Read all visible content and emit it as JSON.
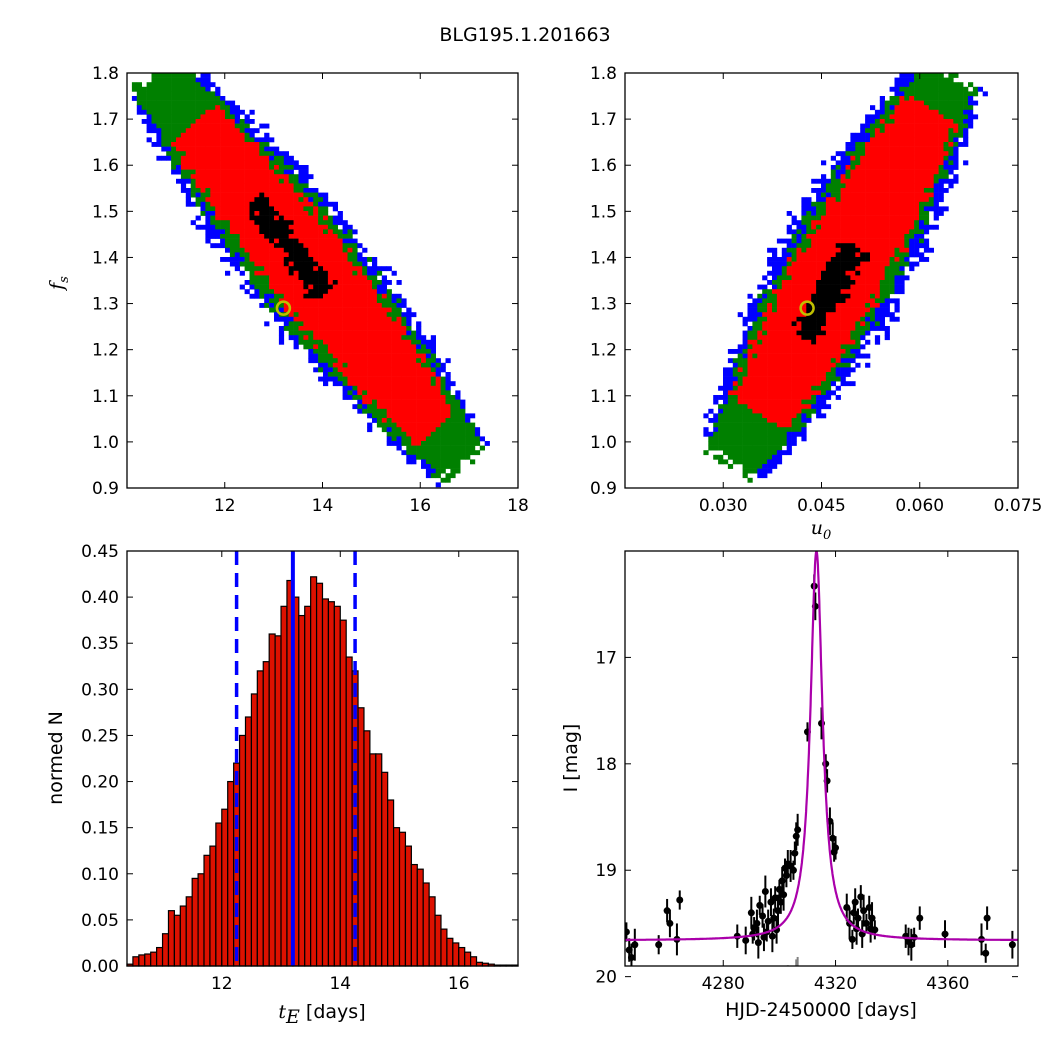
{
  "figure": {
    "title": "BLG195.1.201663",
    "colors": {
      "blue": "#0000ff",
      "green": "#008000",
      "red": "#ff0000",
      "black": "#000000",
      "marker": "#bfbf00",
      "model": "#aa00aa",
      "residual": "#808080",
      "bar_fill": "#dd1100"
    }
  },
  "chart_data": [
    {
      "id": "panel-fs-vs-tE",
      "type": "heatmap",
      "xlim": [
        10,
        18
      ],
      "ylim": [
        0.9,
        1.8
      ],
      "xticks": [
        "12",
        "14",
        "16",
        "18"
      ],
      "yticks": [
        "0.9",
        "1.0",
        "1.1",
        "1.2",
        "1.3",
        "1.4",
        "1.5",
        "1.6",
        "1.7",
        "1.8"
      ],
      "ylabel_main": "f",
      "ylabel_sub": "s",
      "best_fit": {
        "x": 13.2,
        "y": 1.29
      },
      "band": {
        "x0": 10.6,
        "y0": 1.79,
        "x1": 16.8,
        "y1": 0.96,
        "bow": 0.03,
        "half_widths": [
          0.055,
          0.1,
          0.125,
          0.14
        ]
      }
    },
    {
      "id": "panel-fs-vs-u0",
      "type": "heatmap",
      "xlim": [
        0.015,
        0.075
      ],
      "ylim": [
        0.9,
        1.8
      ],
      "xticks": [
        "0.030",
        "0.045",
        "0.060",
        "0.075"
      ],
      "xtick_values": [
        0.03,
        0.045,
        0.06,
        0.075
      ],
      "yticks": [
        "0.9",
        "1.0",
        "1.1",
        "1.2",
        "1.3",
        "1.4",
        "1.5",
        "1.6",
        "1.7",
        "1.8"
      ],
      "xlabel_main": "u",
      "xlabel_sub": "0",
      "best_fit": {
        "x": 0.0428,
        "y": 1.29
      },
      "band": {
        "x0": 0.0315,
        "y0": 0.96,
        "x1": 0.0645,
        "y1": 1.79,
        "half_widths": [
          0.06,
          0.11,
          0.135,
          0.155
        ]
      }
    },
    {
      "id": "panel-tE-histogram",
      "type": "bar",
      "xlim": [
        10.4,
        17
      ],
      "ylim": [
        0,
        0.45
      ],
      "xticks": [
        "12",
        "14",
        "16"
      ],
      "yticks": [
        "0.00",
        "0.05",
        "0.10",
        "0.15",
        "0.20",
        "0.25",
        "0.30",
        "0.35",
        "0.40",
        "0.45"
      ],
      "xlabel_main": "t",
      "xlabel_sub": "E",
      "xlabel_rest": " [days]",
      "ylabel": "normed N",
      "bin_start": 10.4,
      "bin_width": 0.1,
      "values": [
        0.002,
        0.01,
        0.012,
        0.013,
        0.015,
        0.02,
        0.035,
        0.06,
        0.055,
        0.065,
        0.075,
        0.095,
        0.1,
        0.12,
        0.13,
        0.155,
        0.17,
        0.2,
        0.22,
        0.25,
        0.27,
        0.295,
        0.32,
        0.33,
        0.36,
        0.358,
        0.39,
        0.418,
        0.4,
        0.38,
        0.39,
        0.422,
        0.415,
        0.398,
        0.395,
        0.39,
        0.375,
        0.335,
        0.32,
        0.28,
        0.255,
        0.23,
        0.23,
        0.21,
        0.18,
        0.15,
        0.145,
        0.13,
        0.11,
        0.105,
        0.09,
        0.075,
        0.055,
        0.04,
        0.03,
        0.025,
        0.02,
        0.015,
        0.01,
        0.004,
        0.003,
        0.002,
        0.001,
        0.001,
        0.001,
        0.001
      ],
      "median": 13.2,
      "lower_bound": 12.25,
      "upper_bound": 14.25
    },
    {
      "id": "panel-lightcurve",
      "type": "scatter",
      "xlim": [
        4245,
        4385
      ],
      "ylim_top": 16.0,
      "ylim_bottom": 19.9,
      "xticks": [
        "4280",
        "4320",
        "4360"
      ],
      "xtick_values": [
        4280,
        4320,
        4360
      ],
      "yticks": [
        "17",
        "18",
        "19",
        "20"
      ],
      "ytick_values": [
        17,
        18,
        19,
        20
      ],
      "xlabel": "HJD-2450000 [days]",
      "ylabel": "I [mag]",
      "model": {
        "t0": 4313.2,
        "baseline": 19.66,
        "peak": 16.0,
        "tau": 2.6,
        "residual_baseline": 20.47
      },
      "points": [
        [
          4245.5,
          19.58
        ],
        [
          4246.5,
          19.75
        ],
        [
          4247.3,
          19.82
        ],
        [
          4248.5,
          19.7
        ],
        [
          4257,
          19.7
        ],
        [
          4260,
          19.38
        ],
        [
          4261,
          19.5
        ],
        [
          4263.5,
          19.65
        ],
        [
          4264.5,
          19.28
        ],
        [
          4285,
          19.62
        ],
        [
          4288,
          19.66
        ],
        [
          4290,
          19.4
        ],
        [
          4290.5,
          19.6
        ],
        [
          4291,
          19.55
        ],
        [
          4292,
          19.5
        ],
        [
          4292.5,
          19.68
        ],
        [
          4293,
          19.33
        ],
        [
          4294,
          19.43
        ],
        [
          4294.5,
          19.63
        ],
        [
          4295,
          19.2
        ],
        [
          4295.5,
          19.58
        ],
        [
          4296,
          19.48
        ],
        [
          4297,
          19.3
        ],
        [
          4297.5,
          19.62
        ],
        [
          4298,
          19.45
        ],
        [
          4298.5,
          19.26
        ],
        [
          4299,
          19.56
        ],
        [
          4299.5,
          19.38
        ],
        [
          4300,
          19.18
        ],
        [
          4300.5,
          19.3
        ],
        [
          4301,
          19.1
        ],
        [
          4301.5,
          19.23
        ],
        [
          4302,
          18.98
        ],
        [
          4302.5,
          19.05
        ],
        [
          4303,
          18.94
        ],
        [
          4304,
          18.96
        ],
        [
          4305,
          19.0
        ],
        [
          4305.5,
          18.84
        ],
        [
          4306,
          18.68
        ],
        [
          4306.5,
          18.62
        ],
        [
          4310,
          17.7
        ],
        [
          4312.4,
          16.33
        ],
        [
          4312.8,
          16.52
        ],
        [
          4315,
          17.62
        ],
        [
          4316.5,
          18.0
        ],
        [
          4317,
          18.16
        ],
        [
          4318,
          18.54
        ],
        [
          4319,
          18.7
        ],
        [
          4319.5,
          18.83
        ],
        [
          4320,
          18.79
        ],
        [
          4324,
          19.35
        ],
        [
          4325,
          19.5
        ],
        [
          4326,
          19.65
        ],
        [
          4326.5,
          19.4
        ],
        [
          4327,
          19.3
        ],
        [
          4327.5,
          19.55
        ],
        [
          4328,
          19.45
        ],
        [
          4329,
          19.25
        ],
        [
          4329.5,
          19.6
        ],
        [
          4330,
          19.38
        ],
        [
          4331,
          19.5
        ],
        [
          4332,
          19.35
        ],
        [
          4332.5,
          19.55
        ],
        [
          4333,
          19.45
        ],
        [
          4334,
          19.56
        ],
        [
          4345,
          19.62
        ],
        [
          4346,
          19.67
        ],
        [
          4347,
          19.7
        ],
        [
          4348,
          19.63
        ],
        [
          4350,
          19.45
        ],
        [
          4359,
          19.6
        ],
        [
          4372,
          19.65
        ],
        [
          4373.5,
          19.78
        ],
        [
          4374,
          19.45
        ],
        [
          4383,
          19.7
        ]
      ]
    }
  ]
}
